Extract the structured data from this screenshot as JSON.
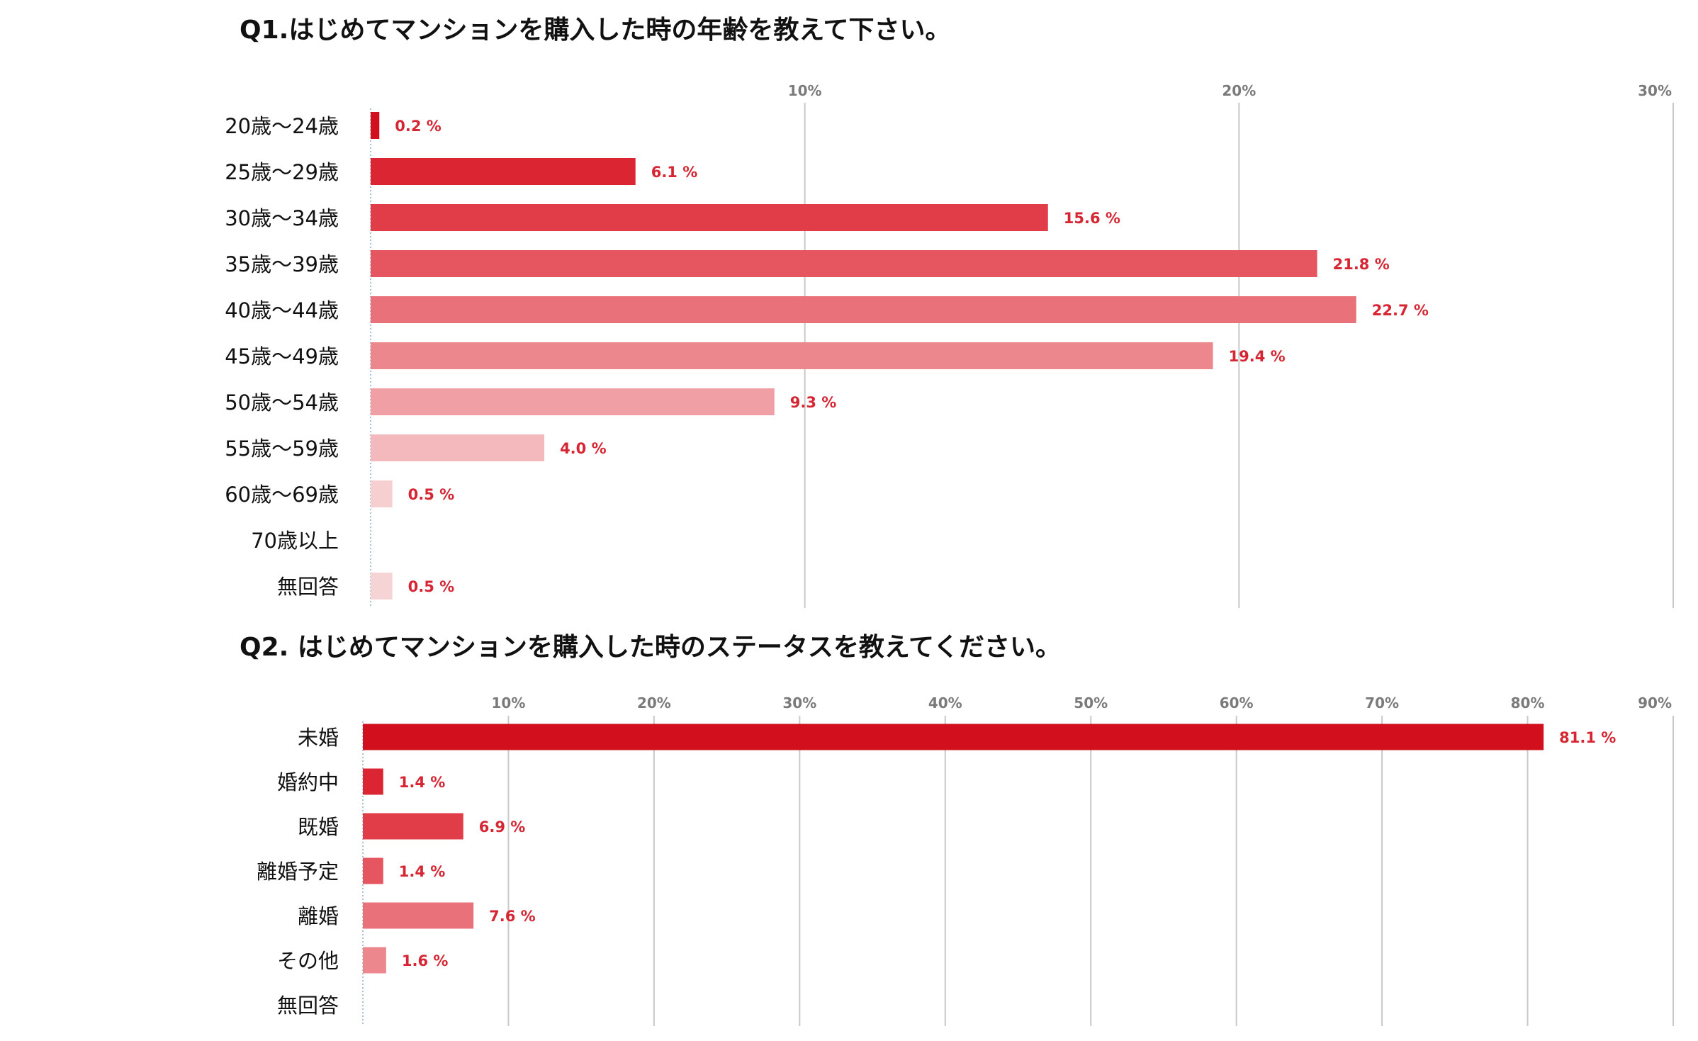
{
  "chart_data": [
    {
      "type": "bar",
      "orientation": "horizontal",
      "title": "Q1.はじめてマンションを購入した時の年齢を教えて下さい。",
      "xlim": [
        0,
        30
      ],
      "xticks": [
        10,
        20,
        30
      ],
      "tick_labels": [
        "10%",
        "20%",
        "30%"
      ],
      "grid": true,
      "categories": [
        "20歳～24歳",
        "25歳～29歳",
        "30歳～34歳",
        "35歳～39歳",
        "40歳～44歳",
        "45歳～49歳",
        "50歳～54歳",
        "55歳～59歳",
        "60歳～69歳",
        "70歳以上",
        "無回答"
      ],
      "values": [
        0.2,
        6.1,
        15.6,
        21.8,
        22.7,
        19.4,
        9.3,
        4.0,
        0.5,
        null,
        0.5
      ],
      "value_labels": [
        "0.2 %",
        "6.1 %",
        "15.6 %",
        "21.8 %",
        "22.7 %",
        "19.4 %",
        "9.3 %",
        "4.0 %",
        "0.5 %",
        "",
        "0.5 %"
      ],
      "colors": [
        "#d20f1c",
        "#db2532",
        "#e03d48",
        "#e55660",
        "#e9717a",
        "#ed878e",
        "#f0a0a5",
        "#f3b9bc",
        "#f6cfd1",
        "#f8dadc",
        "#f6d3d5"
      ]
    },
    {
      "type": "bar",
      "orientation": "horizontal",
      "title": "Q2. はじめてマンションを購入した時のステータスを教えてください。",
      "xlim": [
        0,
        90
      ],
      "xticks": [
        10,
        20,
        30,
        40,
        50,
        60,
        70,
        80,
        90
      ],
      "tick_labels": [
        "10%",
        "20%",
        "30%",
        "40%",
        "50%",
        "60%",
        "70%",
        "80%",
        "90%"
      ],
      "grid": true,
      "categories": [
        "未婚",
        "婚約中",
        "既婚",
        "離婚予定",
        "離婚",
        "その他",
        "無回答"
      ],
      "values": [
        81.1,
        1.4,
        6.9,
        1.4,
        7.6,
        1.6,
        null
      ],
      "value_labels": [
        "81.1 %",
        "1.4 %",
        "6.9 %",
        "1.4 %",
        "7.6 %",
        "1.6 %",
        ""
      ],
      "colors": [
        "#d20f1c",
        "#db2532",
        "#e03d48",
        "#e55660",
        "#e9717a",
        "#ed878e",
        "#f0a0a5"
      ]
    }
  ]
}
